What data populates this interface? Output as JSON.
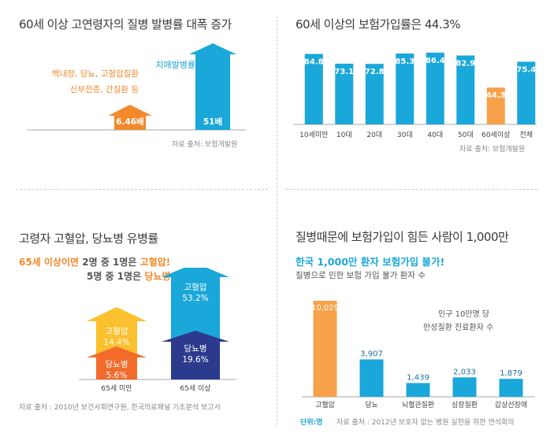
{
  "panel1": {
    "title": "60세 이상 고연령자의 질병 발병률 대폭 증가",
    "left_label_line1": "백내장, 당뇨, 고혈압질환",
    "left_label_line2": "신부전증, 간질환 등",
    "right_label": "치매발병률",
    "source": "자료 출처: 보험개발원",
    "chart_data": {
      "type": "bar",
      "categories": [
        "백내장, 당뇨, 고혈압질환 신부전증, 간질환 등",
        "치매발병률"
      ],
      "values": [
        6.46,
        51
      ],
      "value_labels": [
        "6.46배",
        "51배"
      ],
      "colors": [
        "#f28a2c",
        "#1aa7d9"
      ]
    }
  },
  "panel2": {
    "title": "60세 이상의 보험가입률은 44.3%",
    "source": "자료 출처: 보험개발원",
    "chart_data": {
      "type": "bar",
      "categories": [
        "10세미만",
        "10대",
        "20대",
        "30대",
        "40대",
        "50대",
        "60세이상",
        "전체"
      ],
      "values": [
        84.8,
        73.1,
        72.8,
        85.3,
        86.4,
        82.9,
        44.3,
        75.4
      ],
      "value_labels": [
        "84.8",
        "73.1",
        "72.8",
        "85.3",
        "86.4",
        "82.9",
        "44.3",
        "75.4"
      ],
      "highlight_index": 6,
      "colors": {
        "default": "#1aa7d9",
        "highlight": "#f7a24a"
      }
    }
  },
  "panel3": {
    "title": "고령자 고혈압, 당뇨병 유병률",
    "sub1_a": "65세 이상이면",
    "sub1_b": " 2명 중 1명은 ",
    "sub1_c": "고혈압!",
    "sub2_a": "5명 중 1명은 ",
    "sub2_b": "당뇨병!",
    "source": "자료 출처 : 2010년 보건사회연구원, 한국의료패널 기초분석 보고서",
    "chart_data": {
      "type": "bar",
      "categories": [
        "65세 미만",
        "65세 이상"
      ],
      "series": [
        {
          "name": "당뇨병",
          "values": [
            5.6,
            19.6
          ],
          "value_labels": [
            "5.6%",
            "19.6%"
          ]
        },
        {
          "name": "고혈압",
          "values": [
            14.4,
            53.2
          ],
          "value_labels": [
            "14.4%",
            "53.2%"
          ]
        }
      ],
      "colors": {
        "under65_diabetes": "#f36b2a",
        "under65_hypertension": "#fbc02d",
        "over65_diabetes": "#2b3a8c",
        "over65_hypertension": "#1aa7d9"
      }
    }
  },
  "panel4": {
    "title": "질병때문에 보험가입이 힘든 사람이 1,000만",
    "subtitle": "한국 1,000만 환자 보험가입 불가!",
    "subtitle2": "질병으로 인한 보험 가입 불가 환자 수",
    "note_line1": "인구 10만명 당",
    "note_line2": "만성질환 진료환자 수",
    "unit": "단위:명",
    "source": "자료 출처 : 2012년 보호자 없는 병원 실현을 위한 연석회의",
    "chart_data": {
      "type": "bar",
      "categories": [
        "고혈압",
        "당뇨",
        "뇌혈관질환",
        "심장질환",
        "갑상선장애"
      ],
      "values": [
        10029,
        3907,
        1439,
        2033,
        1879
      ],
      "value_labels": [
        "10,029",
        "3,907",
        "1,439",
        "2,033",
        "1,879"
      ],
      "colors": {
        "first": "#f7a24a",
        "default": "#1aa7d9"
      }
    }
  }
}
